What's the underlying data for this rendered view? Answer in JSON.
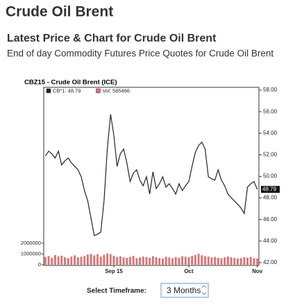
{
  "header": {
    "title": "Crude Oil Brent",
    "subtitle": "Latest Price & Chart for Crude Oil Brent",
    "description": "End of day Commodity Futures Price Quotes for Crude Oil Brent"
  },
  "chart_data": {
    "type": "line",
    "title": "CBZ15 - Crude Oil Brent (ICE)",
    "categories": [
      null,
      null,
      null,
      null,
      null,
      null,
      null,
      null,
      null,
      null,
      null,
      null,
      null,
      null,
      null,
      null,
      null,
      null,
      null,
      null,
      null,
      "Sep 15",
      null,
      null,
      null,
      null,
      null,
      null,
      null,
      null,
      null,
      null,
      null,
      null,
      null,
      null,
      null,
      null,
      null,
      null,
      null,
      null,
      null,
      null,
      "Oct",
      null,
      null,
      null,
      null,
      null,
      null,
      null,
      null,
      null,
      null,
      null,
      null,
      null,
      null,
      null,
      null,
      null,
      null,
      null,
      null,
      "Nov"
    ],
    "series": [
      {
        "name": "CB*1: 48.79",
        "color": "#222222",
        "type": "line",
        "last_label": "48.79",
        "values": [
          51.89,
          52.34,
          52.09,
          51.7,
          52.34,
          51.06,
          51.44,
          51.7,
          51.25,
          50.93,
          50.61,
          49.97,
          48.68,
          47.72,
          46.11,
          44.51,
          44.63,
          44.83,
          47.72,
          52.54,
          55.75,
          53.82,
          50.93,
          52.09,
          52.54,
          51.25,
          49.52,
          50.29,
          50.61,
          49.65,
          49.13,
          49.97,
          48.36,
          50.42,
          48.87,
          49.32,
          49.97,
          49.0,
          49.32,
          48.87,
          48.36,
          49.32,
          48.68,
          49.13,
          49.52,
          50.93,
          52.22,
          52.86,
          53.18,
          52.54,
          49.97,
          49.77,
          49.65,
          50.61,
          49.65,
          49.13,
          48.36,
          48.04,
          47.72,
          47.4,
          47.07,
          46.56,
          49.0,
          49.32,
          49.52,
          48.79
        ]
      },
      {
        "name": "Vol: 585466",
        "color": "#e07070",
        "type": "bar",
        "axis": "y2",
        "values": [
          720000,
          810000,
          650000,
          900000,
          780000,
          850000,
          700000,
          620000,
          760000,
          880000,
          690000,
          740000,
          820000,
          950000,
          1010000,
          870000,
          980000,
          760000,
          920000,
          1050000,
          990000,
          830000,
          710000,
          780000,
          690000,
          640000,
          730000,
          820000,
          600000,
          680000,
          760000,
          710000,
          650000,
          790000,
          700000,
          620000,
          580000,
          740000,
          690000,
          610000,
          720000,
          660000,
          800000,
          750000,
          700000,
          830000,
          900000,
          1020000,
          880000,
          790000,
          760000,
          680000,
          720000,
          650000,
          610000,
          700000,
          760000,
          690000,
          640000,
          580000,
          620000,
          700000,
          660000,
          720000,
          610000,
          585466
        ]
      }
    ],
    "ylim": [
      41.74,
      58.26
    ],
    "yticks": [
      {
        "value": 42,
        "label": "42.00"
      },
      {
        "value": 44,
        "label": "44.00"
      },
      {
        "value": 46,
        "label": "46.00"
      },
      {
        "value": 48,
        "label": "48.00"
      },
      {
        "value": 50,
        "label": "50.00"
      },
      {
        "value": 52,
        "label": "52.00"
      },
      {
        "value": 54,
        "label": "54.00"
      },
      {
        "value": 56,
        "label": "56.00"
      },
      {
        "value": 58,
        "label": "58.00"
      }
    ],
    "y2lim": [
      0,
      16500000
    ],
    "y2ticks": [
      0,
      1000000,
      2000000
    ]
  },
  "controls": {
    "label": "Select Timeframe:",
    "timeframe": "3 Months"
  }
}
